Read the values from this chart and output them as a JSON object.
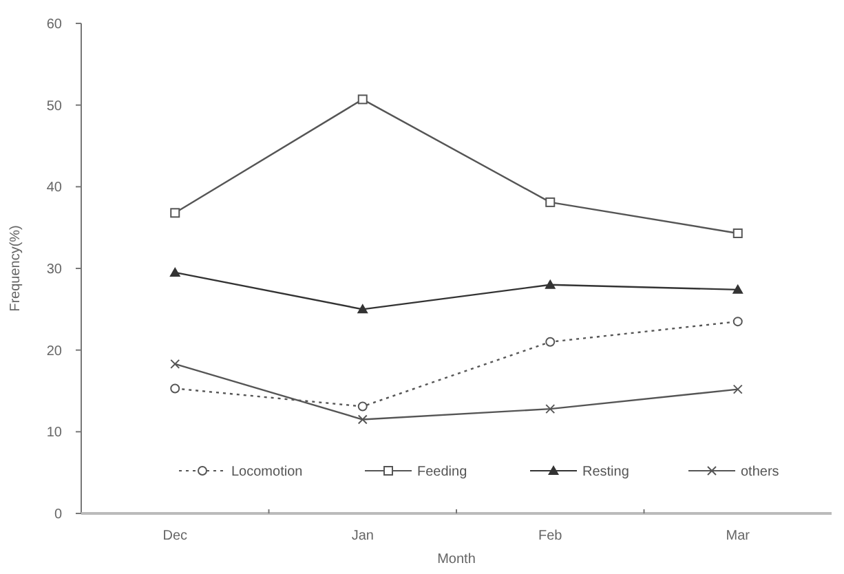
{
  "chart_data": {
    "type": "line",
    "xlabel": "Month",
    "ylabel": "Frequency(%)",
    "categories": [
      "Dec",
      "Jan",
      "Feb",
      "Mar"
    ],
    "ylim": [
      0,
      60
    ],
    "yticks": [
      0,
      10,
      20,
      30,
      40,
      50,
      60
    ],
    "grid": false,
    "legend": "bottom",
    "series": [
      {
        "name": "Locomotion",
        "color": "#555555",
        "marker": "circle",
        "line_style": "dotted",
        "values": [
          15.3,
          13.1,
          21,
          23.5
        ]
      },
      {
        "name": "Feeding",
        "color": "#555555",
        "marker": "square",
        "line_style": "solid",
        "values": [
          36.8,
          50.7,
          38.1,
          34.3
        ]
      },
      {
        "name": "Resting",
        "color": "#333333",
        "marker": "triangle",
        "line_style": "solid",
        "values": [
          29.5,
          25,
          28,
          27.4
        ]
      },
      {
        "name": "others",
        "color": "#555555",
        "marker": "cross",
        "line_style": "solid",
        "values": [
          18.3,
          11.5,
          12.8,
          15.2
        ]
      }
    ]
  }
}
